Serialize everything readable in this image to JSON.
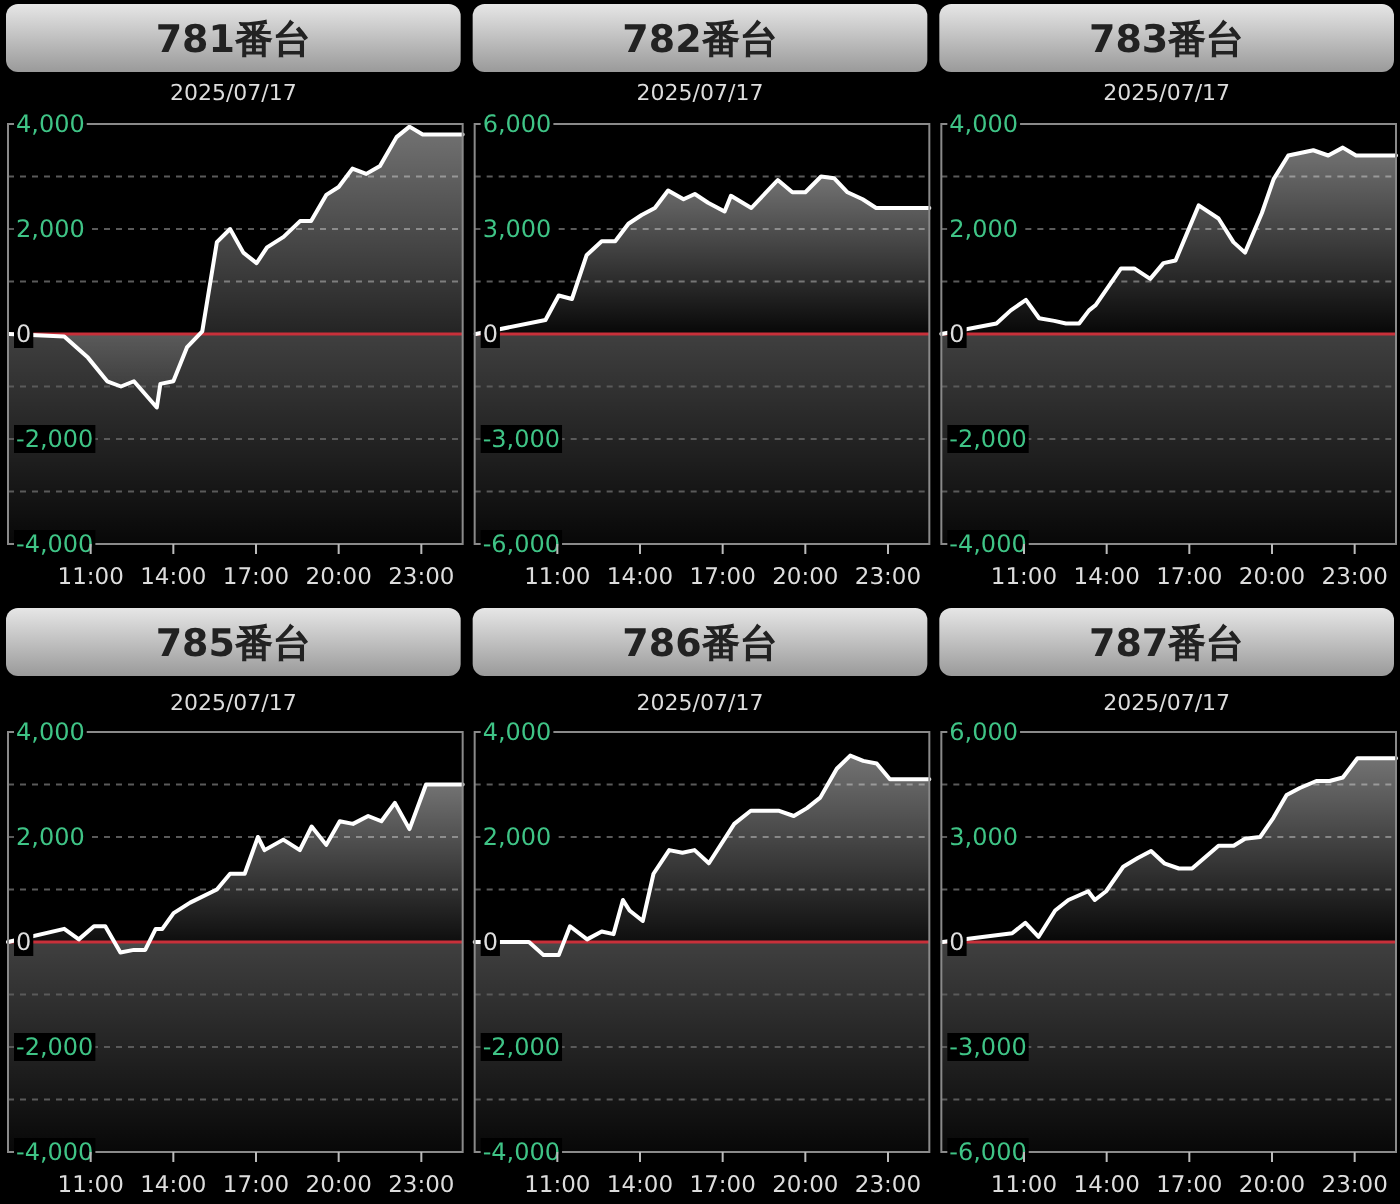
{
  "chart_data": [
    {
      "type": "area",
      "title": "781番台",
      "subtitle": "2025/07/17",
      "xlim": [
        8,
        24.5
      ],
      "ylim": [
        -4000,
        4000
      ],
      "grid": "y",
      "xticks": [
        {
          "value": 11,
          "label": "11:00"
        },
        {
          "value": 14,
          "label": "14:00"
        },
        {
          "value": 17,
          "label": "17:00"
        },
        {
          "value": 20,
          "label": "20:00"
        },
        {
          "value": 23,
          "label": "23:00"
        }
      ],
      "yticks": [
        {
          "value": -4000,
          "label": "-4,000"
        },
        {
          "value": -3000,
          "label": null
        },
        {
          "value": -2000,
          "label": "-2,000"
        },
        {
          "value": -1000,
          "label": null
        },
        {
          "value": 0,
          "label": "0"
        },
        {
          "value": 1000,
          "label": null
        },
        {
          "value": 2000,
          "label": "2,000"
        },
        {
          "value": 3000,
          "label": null
        },
        {
          "value": 4000,
          "label": "4,000"
        }
      ],
      "ref_lines": [
        {
          "axis": "y",
          "value": 0,
          "color": "#c8303a"
        }
      ],
      "series": [
        {
          "color": "#ffffff",
          "x": [
            8.04,
            10.04,
            10.9,
            11.6,
            12.1,
            12.57,
            13.4,
            13.53,
            14.0,
            14.5,
            15.05,
            15.58,
            16.06,
            16.54,
            17.02,
            17.4,
            18.0,
            18.6,
            19.0,
            19.55,
            20.0,
            20.5,
            21.0,
            21.5,
            22.1,
            22.57,
            23.05,
            24.5
          ],
          "values": [
            0,
            -50,
            -450,
            -900,
            -1000,
            -900,
            -1400,
            -950,
            -900,
            -250,
            50,
            1750,
            2000,
            1550,
            1350,
            1650,
            1850,
            2150,
            2150,
            2650,
            2800,
            3150,
            3050,
            3200,
            3750,
            3950,
            3800,
            3800
          ]
        }
      ]
    },
    {
      "type": "area",
      "title": "782番台",
      "subtitle": "2025/07/17",
      "xlim": [
        8,
        24.5
      ],
      "ylim": [
        -6000,
        6000
      ],
      "grid": "y",
      "xticks": [
        {
          "value": 11,
          "label": "11:00"
        },
        {
          "value": 14,
          "label": "14:00"
        },
        {
          "value": 17,
          "label": "17:00"
        },
        {
          "value": 20,
          "label": "20:00"
        },
        {
          "value": 23,
          "label": "23:00"
        }
      ],
      "yticks": [
        {
          "value": -6000,
          "label": "-6,000"
        },
        {
          "value": -4500,
          "label": null
        },
        {
          "value": -3000,
          "label": "-3,000"
        },
        {
          "value": -1500,
          "label": null
        },
        {
          "value": 0,
          "label": "0"
        },
        {
          "value": 1500,
          "label": null
        },
        {
          "value": 3000,
          "label": "3,000"
        },
        {
          "value": 4500,
          "label": null
        },
        {
          "value": 6000,
          "label": "6,000"
        }
      ],
      "ref_lines": [
        {
          "axis": "y",
          "value": 0,
          "color": "#c8303a"
        }
      ],
      "series": [
        {
          "color": "#ffffff",
          "x": [
            8.04,
            10.57,
            11.05,
            11.53,
            12.06,
            12.61,
            13.1,
            13.58,
            14.06,
            14.54,
            15.02,
            15.58,
            15.99,
            16.47,
            17.07,
            17.3,
            18.04,
            19.0,
            19.53,
            20.0,
            20.57,
            21.05,
            21.53,
            22.08,
            22.57,
            24.5
          ],
          "values": [
            0,
            400,
            1100,
            1000,
            2250,
            2650,
            2650,
            3150,
            3400,
            3600,
            4100,
            3850,
            4000,
            3750,
            3500,
            3950,
            3600,
            4400,
            4050,
            4050,
            4500,
            4450,
            4050,
            3850,
            3600,
            3600
          ]
        }
      ]
    },
    {
      "type": "area",
      "title": "783番台",
      "subtitle": "2025/07/17",
      "xlim": [
        8,
        24.5
      ],
      "ylim": [
        -4000,
        4000
      ],
      "grid": "y",
      "xticks": [
        {
          "value": 11,
          "label": "11:00"
        },
        {
          "value": 14,
          "label": "14:00"
        },
        {
          "value": 17,
          "label": "17:00"
        },
        {
          "value": 20,
          "label": "20:00"
        },
        {
          "value": 23,
          "label": "23:00"
        }
      ],
      "yticks": [
        {
          "value": -4000,
          "label": "-4,000"
        },
        {
          "value": -3000,
          "label": null
        },
        {
          "value": -2000,
          "label": "-2,000"
        },
        {
          "value": -1000,
          "label": null
        },
        {
          "value": 0,
          "label": "0"
        },
        {
          "value": 1000,
          "label": null
        },
        {
          "value": 2000,
          "label": "2,000"
        },
        {
          "value": 3000,
          "label": null
        },
        {
          "value": 4000,
          "label": "4,000"
        }
      ],
      "ref_lines": [
        {
          "axis": "y",
          "value": 0,
          "color": "#c8303a"
        }
      ],
      "series": [
        {
          "color": "#ffffff",
          "x": [
            8.0,
            10.0,
            10.52,
            11.07,
            11.55,
            12.1,
            12.52,
            13.0,
            13.36,
            13.6,
            14.52,
            15.0,
            15.58,
            16.06,
            16.5,
            17.34,
            18.06,
            18.6,
            19.02,
            19.63,
            20.06,
            20.59,
            21.5,
            22.04,
            22.57,
            23.05,
            24.5
          ],
          "values": [
            0,
            200,
            450,
            650,
            300,
            250,
            200,
            200,
            450,
            550,
            1250,
            1250,
            1050,
            1350,
            1400,
            2450,
            2200,
            1750,
            1550,
            2300,
            2950,
            3400,
            3500,
            3400,
            3550,
            3400,
            3400
          ]
        }
      ]
    },
    {
      "type": "area",
      "title": "785番台",
      "subtitle": "2025/07/17",
      "xlim": [
        8,
        24.5
      ],
      "ylim": [
        -4000,
        4000
      ],
      "grid": "y",
      "xticks": [
        {
          "value": 11,
          "label": "11:00"
        },
        {
          "value": 14,
          "label": "14:00"
        },
        {
          "value": 17,
          "label": "17:00"
        },
        {
          "value": 20,
          "label": "20:00"
        },
        {
          "value": 23,
          "label": "23:00"
        }
      ],
      "yticks": [
        {
          "value": -4000,
          "label": "-4,000"
        },
        {
          "value": -3000,
          "label": null
        },
        {
          "value": -2000,
          "label": "-2,000"
        },
        {
          "value": -1000,
          "label": null
        },
        {
          "value": 0,
          "label": "0"
        },
        {
          "value": 1000,
          "label": null
        },
        {
          "value": 2000,
          "label": "2,000"
        },
        {
          "value": 3000,
          "label": null
        },
        {
          "value": 4000,
          "label": "4,000"
        }
      ],
      "ref_lines": [
        {
          "axis": "y",
          "value": 0,
          "color": "#c8303a"
        }
      ],
      "series": [
        {
          "color": "#ffffff",
          "x": [
            8.0,
            10.04,
            10.57,
            11.12,
            11.53,
            12.08,
            12.57,
            12.98,
            13.36,
            13.6,
            14.01,
            14.61,
            15.58,
            16.06,
            16.59,
            17.07,
            17.31,
            17.99,
            18.59,
            19.02,
            19.55,
            20.04,
            20.52,
            21.07,
            21.55,
            22.04,
            22.57,
            23.17,
            24.5
          ],
          "values": [
            0,
            250,
            50,
            300,
            300,
            -200,
            -150,
            -150,
            250,
            250,
            550,
            750,
            1000,
            1300,
            1300,
            2000,
            1750,
            1950,
            1750,
            2200,
            1850,
            2300,
            2250,
            2400,
            2300,
            2650,
            2150,
            3000,
            3000
          ]
        }
      ]
    },
    {
      "type": "area",
      "title": "786番台",
      "subtitle": "2025/07/17",
      "xlim": [
        8,
        24.5
      ],
      "ylim": [
        -4000,
        4000
      ],
      "grid": "y",
      "xticks": [
        {
          "value": 11,
          "label": "11:00"
        },
        {
          "value": 14,
          "label": "14:00"
        },
        {
          "value": 17,
          "label": "17:00"
        },
        {
          "value": 20,
          "label": "20:00"
        },
        {
          "value": 23,
          "label": "23:00"
        }
      ],
      "yticks": [
        {
          "value": -4000,
          "label": "-4,000"
        },
        {
          "value": -3000,
          "label": null
        },
        {
          "value": -2000,
          "label": "-2,000"
        },
        {
          "value": -1000,
          "label": null
        },
        {
          "value": 0,
          "label": "0"
        },
        {
          "value": 1000,
          "label": null
        },
        {
          "value": 2000,
          "label": "2,000"
        },
        {
          "value": 3000,
          "label": null
        },
        {
          "value": 4000,
          "label": "4,000"
        }
      ],
      "ref_lines": [
        {
          "axis": "y",
          "value": 0,
          "color": "#c8303a"
        }
      ],
      "series": [
        {
          "color": "#ffffff",
          "x": [
            8.0,
            9.97,
            10.5,
            11.05,
            11.46,
            12.08,
            12.61,
            13.04,
            13.38,
            13.62,
            14.1,
            14.49,
            15.06,
            15.54,
            15.98,
            16.5,
            17.42,
            18.02,
            18.5,
            19.05,
            19.58,
            20.06,
            20.54,
            21.14,
            21.63,
            22.1,
            22.59,
            23.07,
            24.5
          ],
          "values": [
            0,
            0,
            -250,
            -250,
            300,
            50,
            200,
            150,
            800,
            600,
            400,
            1300,
            1750,
            1700,
            1750,
            1500,
            2250,
            2500,
            2500,
            2500,
            2400,
            2550,
            2750,
            3300,
            3550,
            3450,
            3400,
            3100,
            3100
          ]
        }
      ]
    },
    {
      "type": "area",
      "title": "787番台",
      "subtitle": "2025/07/17",
      "xlim": [
        8,
        24.5
      ],
      "ylim": [
        -6000,
        6000
      ],
      "grid": "y",
      "xticks": [
        {
          "value": 11,
          "label": "11:00"
        },
        {
          "value": 14,
          "label": "14:00"
        },
        {
          "value": 17,
          "label": "17:00"
        },
        {
          "value": 20,
          "label": "20:00"
        },
        {
          "value": 23,
          "label": "23:00"
        }
      ],
      "yticks": [
        {
          "value": -6000,
          "label": "-6,000"
        },
        {
          "value": -4500,
          "label": null
        },
        {
          "value": -3000,
          "label": "-3,000"
        },
        {
          "value": -1500,
          "label": null
        },
        {
          "value": 0,
          "label": "0"
        },
        {
          "value": 1500,
          "label": null
        },
        {
          "value": 3000,
          "label": "3,000"
        },
        {
          "value": 4500,
          "label": null
        },
        {
          "value": 6000,
          "label": "6,000"
        }
      ],
      "ref_lines": [
        {
          "axis": "y",
          "value": 0,
          "color": "#c8303a"
        }
      ],
      "series": [
        {
          "color": "#ffffff",
          "x": [
            8.05,
            10.57,
            11.05,
            11.53,
            12.13,
            12.61,
            13.33,
            13.57,
            13.98,
            14.6,
            15.13,
            15.61,
            16.09,
            16.62,
            17.1,
            18.06,
            18.61,
            19.02,
            19.57,
            20.05,
            20.53,
            21.01,
            21.61,
            22.09,
            22.57,
            23.1,
            24.5
          ],
          "values": [
            0,
            250,
            550,
            150,
            900,
            1200,
            1450,
            1200,
            1450,
            2150,
            2400,
            2600,
            2250,
            2100,
            2100,
            2750,
            2750,
            2950,
            3000,
            3550,
            4200,
            4400,
            4600,
            4600,
            4700,
            5250,
            5250
          ]
        }
      ]
    }
  ]
}
